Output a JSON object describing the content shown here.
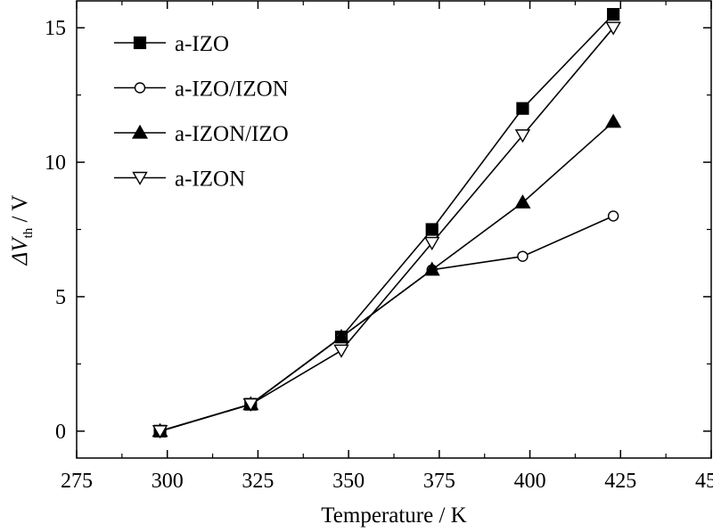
{
  "chart_data": {
    "type": "line",
    "title": "",
    "xlabel": "Temperature / K",
    "ylabel": {
      "prefix": "ΔV",
      "subscript": "th",
      "suffix": " / V"
    },
    "xlim": [
      275,
      450
    ],
    "ylim": [
      -1,
      16
    ],
    "xticks": [
      275,
      300,
      325,
      350,
      375,
      400,
      425,
      450
    ],
    "yticks": [
      0,
      5,
      10,
      15
    ],
    "grid": false,
    "legend_position": "top-left",
    "series": [
      {
        "name": "a-IZO",
        "marker": "filled-square",
        "x": [
          298,
          323,
          348,
          373,
          398,
          423
        ],
        "y": [
          0,
          1,
          3.5,
          7.5,
          12,
          15.5
        ]
      },
      {
        "name": "a-IZO/IZON",
        "marker": "open-circle",
        "x": [
          298,
          323,
          348,
          373,
          398,
          423
        ],
        "y": [
          0,
          1,
          3.5,
          6,
          6.5,
          8
        ]
      },
      {
        "name": "a-IZON/IZO",
        "marker": "filled-triangle-up",
        "x": [
          298,
          323,
          348,
          373,
          398,
          423
        ],
        "y": [
          0,
          1,
          3.5,
          6,
          8.5,
          11.5
        ]
      },
      {
        "name": "a-IZON",
        "marker": "open-triangle-down",
        "x": [
          298,
          323,
          348,
          373,
          398,
          423
        ],
        "y": [
          0,
          1,
          3,
          7,
          11,
          15
        ]
      }
    ]
  }
}
